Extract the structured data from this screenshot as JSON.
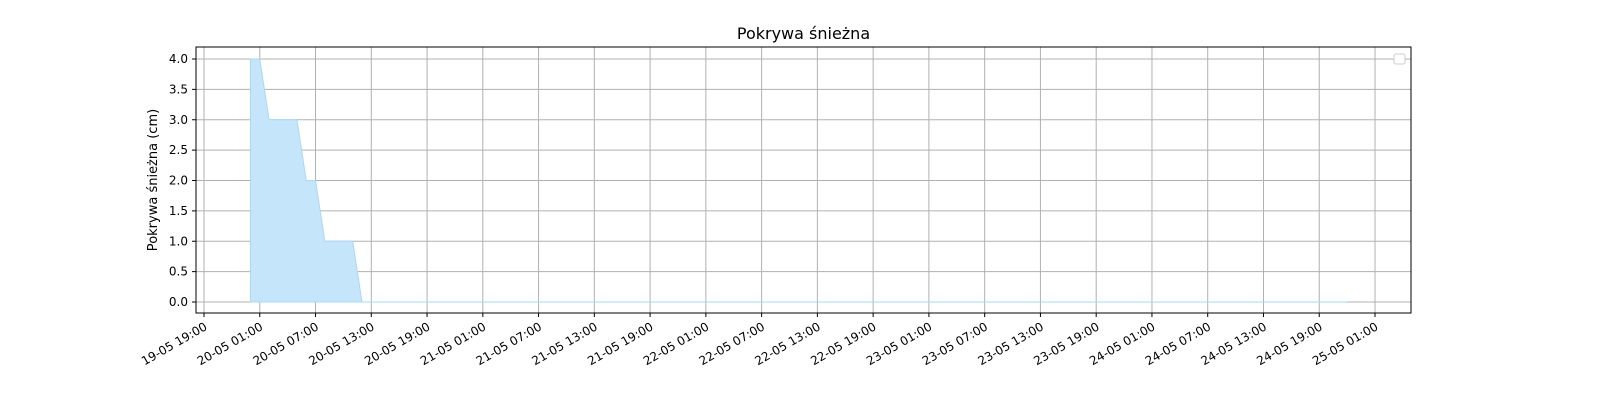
{
  "chart_data": {
    "type": "area",
    "title": "Pokrywa śnieżna",
    "xlabel": "",
    "ylabel": "Pokrywa śnieżna (cm)",
    "x_tick_labels": [
      "19-05 19:00",
      "20-05 01:00",
      "20-05 07:00",
      "20-05 13:00",
      "20-05 19:00",
      "21-05 01:00",
      "21-05 07:00",
      "21-05 13:00",
      "21-05 19:00",
      "22-05 01:00",
      "22-05 07:00",
      "22-05 13:00",
      "22-05 19:00",
      "23-05 01:00",
      "23-05 07:00",
      "23-05 13:00",
      "23-05 19:00",
      "24-05 01:00",
      "24-05 07:00",
      "24-05 13:00",
      "24-05 19:00",
      "25-05 01:00"
    ],
    "x_range": [
      "19-05 19:00",
      "25-05 01:00"
    ],
    "y_ticks": [
      "0.0",
      "0.5",
      "1.0",
      "1.5",
      "2.0",
      "2.5",
      "3.0",
      "3.5",
      "4.0"
    ],
    "ylim": [
      0,
      4
    ],
    "grid": true,
    "legend": "top-right",
    "fill_color": "#c5e6fa",
    "line_color": "#a8d8f5",
    "x": [
      "20-05 00:00",
      "20-05 01:00",
      "20-05 02:00",
      "20-05 05:00",
      "20-05 06:00",
      "20-05 07:00",
      "20-05 08:00",
      "20-05 11:00",
      "20-05 12:00",
      "24-05 22:00"
    ],
    "values": [
      4.0,
      4.0,
      3.0,
      3.0,
      2.0,
      2.0,
      1.0,
      1.0,
      0.0,
      0.0
    ]
  }
}
